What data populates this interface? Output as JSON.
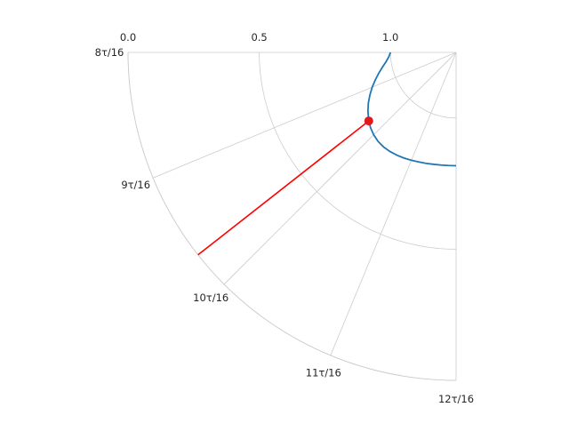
{
  "chart_data": {
    "type": "line",
    "projection": "polar",
    "theta_unit": "tau",
    "theta_range_tau": [
      0.5,
      0.75
    ],
    "r_range": [
      0,
      1.25
    ],
    "r_direction": "reversed",
    "r_ticks": [
      {
        "value": 1.0,
        "label": "1.0"
      },
      {
        "value": 0.5,
        "label": "0.5"
      },
      {
        "value": 0.0,
        "label": "0.0"
      }
    ],
    "theta_ticks": [
      {
        "value_tau": 0.5,
        "label": "8τ/16"
      },
      {
        "value_tau": 0.5625,
        "label": "9τ/16"
      },
      {
        "value_tau": 0.625,
        "label": "10τ/16"
      },
      {
        "value_tau": 0.6875,
        "label": "11τ/16"
      },
      {
        "value_tau": 0.75,
        "label": "12τ/16"
      }
    ],
    "grid": true,
    "series": [
      {
        "kind": "curve",
        "color": "#1f77b4",
        "points": [
          {
            "theta_tau": 0.5,
            "r": 1.0
          },
          {
            "theta_tau": 0.5104,
            "r": 0.993
          },
          {
            "theta_tau": 0.5208,
            "r": 0.981
          },
          {
            "theta_tau": 0.5313,
            "r": 0.964
          },
          {
            "theta_tau": 0.5417,
            "r": 0.945
          },
          {
            "theta_tau": 0.5521,
            "r": 0.925
          },
          {
            "theta_tau": 0.5625,
            "r": 0.904
          },
          {
            "theta_tau": 0.5729,
            "r": 0.884
          },
          {
            "theta_tau": 0.5833,
            "r": 0.864
          },
          {
            "theta_tau": 0.5938,
            "r": 0.846
          },
          {
            "theta_tau": 0.6042,
            "r": 0.83
          },
          {
            "theta_tau": 0.6146,
            "r": 0.816
          },
          {
            "theta_tau": 0.625,
            "r": 0.806
          },
          {
            "theta_tau": 0.6354,
            "r": 0.799
          },
          {
            "theta_tau": 0.6458,
            "r": 0.796
          },
          {
            "theta_tau": 0.6563,
            "r": 0.796
          },
          {
            "theta_tau": 0.6667,
            "r": 0.798
          },
          {
            "theta_tau": 0.6771,
            "r": 0.801
          },
          {
            "theta_tau": 0.6875,
            "r": 0.805
          },
          {
            "theta_tau": 0.6979,
            "r": 0.809
          },
          {
            "theta_tau": 0.7083,
            "r": 0.812
          },
          {
            "theta_tau": 0.7188,
            "r": 0.815
          },
          {
            "theta_tau": 0.7292,
            "r": 0.817
          },
          {
            "theta_tau": 0.7396,
            "r": 0.818
          },
          {
            "theta_tau": 0.75,
            "r": 0.818
          }
        ]
      },
      {
        "kind": "ray",
        "color": "#ff0000",
        "from": {
          "theta_tau": 0.6059,
          "r": 0.0
        },
        "to": {
          "theta_tau": 0.6059,
          "r": 0.827
        }
      },
      {
        "kind": "marker",
        "color": "#e31a1c",
        "point": {
          "theta_tau": 0.6059,
          "r": 0.827
        }
      }
    ]
  }
}
